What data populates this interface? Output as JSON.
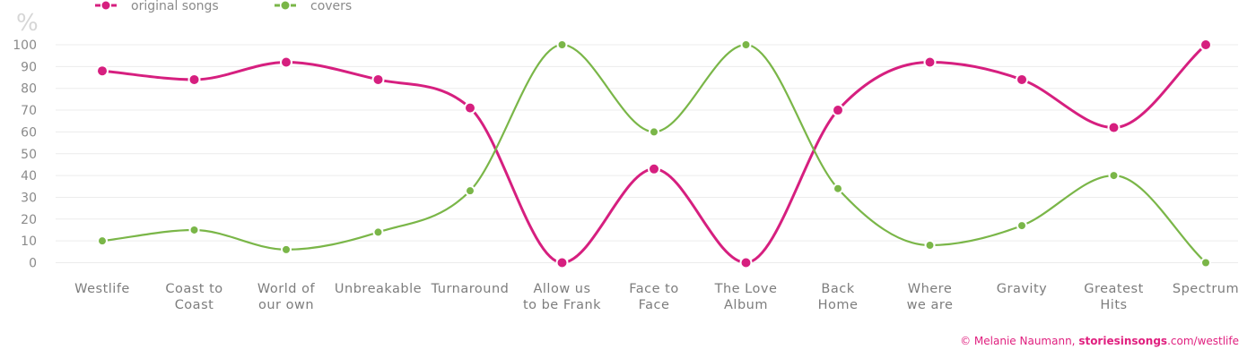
{
  "chart_data": {
    "type": "line",
    "ylabel": "%",
    "ylim": [
      0,
      100
    ],
    "yticks": [
      0,
      10,
      20,
      30,
      40,
      50,
      60,
      70,
      80,
      90,
      100
    ],
    "grid": true,
    "legend_position": "top-left",
    "categories": [
      [
        "Westlife"
      ],
      [
        "Coast to",
        "Coast"
      ],
      [
        "World of",
        "our own"
      ],
      [
        "Unbreakable"
      ],
      [
        "Turnaround"
      ],
      [
        "Allow us",
        "to be Frank"
      ],
      [
        "Face to",
        "Face"
      ],
      [
        "The Love",
        "Album"
      ],
      [
        "Back",
        "Home"
      ],
      [
        "Where",
        "we are"
      ],
      [
        "Gravity"
      ],
      [
        "Greatest",
        "Hits"
      ],
      [
        "Spectrum"
      ]
    ],
    "series": [
      {
        "name": "original songs",
        "color": "#d61f7f",
        "values": [
          88,
          84,
          92,
          84,
          71,
          0,
          43,
          0,
          70,
          92,
          84,
          62,
          100
        ]
      },
      {
        "name": "covers",
        "color": "#7ab648",
        "values": [
          10,
          15,
          6,
          14,
          33,
          100,
          60,
          100,
          34,
          8,
          17,
          40,
          0
        ]
      }
    ]
  },
  "credit": {
    "prefix": "© Melanie Naumann, ",
    "site": "storiesinsongs",
    "suffix": ".com/westlife"
  }
}
